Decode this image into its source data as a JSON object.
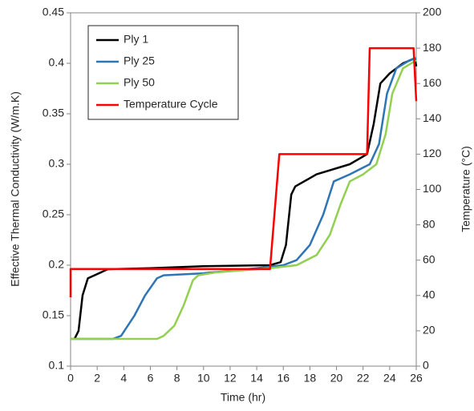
{
  "chart_data": {
    "type": "line",
    "xlabel": "Time (hr)",
    "ylabel": "Effective Thermal Conductivity (W/m.K)",
    "y2label": "Temperature (°C)",
    "xlim": [
      0,
      26
    ],
    "xticks": [
      0,
      2,
      4,
      6,
      8,
      10,
      12,
      14,
      16,
      18,
      20,
      22,
      24,
      26
    ],
    "ylim": [
      0.1,
      0.45
    ],
    "yticks": [
      0.1,
      0.15,
      0.2,
      0.25,
      0.3,
      0.35,
      0.4,
      0.45
    ],
    "y2lim": [
      0,
      200
    ],
    "y2ticks": [
      0,
      20,
      40,
      60,
      80,
      100,
      120,
      140,
      160,
      180,
      200
    ],
    "legend": "upper left",
    "series": [
      {
        "name": "Ply 1",
        "color": "#000000",
        "x": [
          0.3,
          0.6,
          0.9,
          1.3,
          1.8,
          2.8,
          6,
          10,
          15,
          15.8,
          16.2,
          16.6,
          16.9,
          18.5,
          21,
          22.3,
          22.8,
          23.3,
          24,
          25,
          25.9,
          26
        ],
        "values": [
          0.127,
          0.135,
          0.17,
          0.187,
          0.19,
          0.196,
          0.197,
          0.199,
          0.2,
          0.203,
          0.22,
          0.27,
          0.278,
          0.29,
          0.3,
          0.31,
          0.34,
          0.38,
          0.39,
          0.4,
          0.405,
          0.397
        ]
      },
      {
        "name": "Ply 25",
        "color": "#2e75b6",
        "x": [
          0,
          3.2,
          3.8,
          4.8,
          5.6,
          6.5,
          7,
          10,
          14,
          16,
          17,
          18,
          19,
          19.8,
          21,
          22.5,
          23.2,
          23.8,
          24.5,
          25.5,
          26
        ],
        "values": [
          0.127,
          0.127,
          0.13,
          0.15,
          0.17,
          0.187,
          0.19,
          0.192,
          0.197,
          0.2,
          0.205,
          0.22,
          0.25,
          0.283,
          0.29,
          0.3,
          0.32,
          0.37,
          0.395,
          0.403,
          0.405
        ]
      },
      {
        "name": "Ply 50",
        "color": "#92d050",
        "x": [
          0,
          6.5,
          7,
          7.8,
          8.5,
          9.2,
          9.6,
          11,
          15,
          17,
          18.5,
          19.5,
          20.3,
          21,
          22,
          23,
          23.7,
          24.2,
          25,
          26
        ],
        "values": [
          0.127,
          0.127,
          0.13,
          0.14,
          0.16,
          0.185,
          0.19,
          0.193,
          0.197,
          0.2,
          0.21,
          0.23,
          0.26,
          0.283,
          0.29,
          0.3,
          0.33,
          0.37,
          0.395,
          0.403
        ]
      },
      {
        "name": "Temperature Cycle",
        "color": "#ff0000",
        "axis": "y2",
        "x": [
          0,
          0,
          15,
          15.7,
          22.3,
          22.5,
          25.8,
          26
        ],
        "values": [
          39,
          55,
          55,
          120,
          120,
          180,
          180,
          150
        ]
      }
    ]
  }
}
